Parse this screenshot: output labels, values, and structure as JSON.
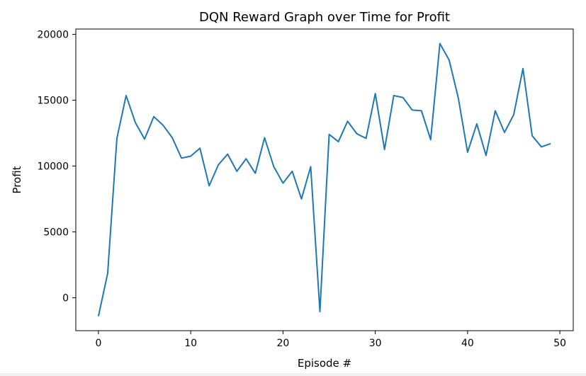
{
  "chart_data": {
    "type": "line",
    "title": "DQN Reward Graph over Time for Profit",
    "xlabel": "Episode #",
    "ylabel": "Profit",
    "xlim": [
      -2.45,
      51.45
    ],
    "ylim": [
      -2500,
      20400
    ],
    "xticks": [
      0,
      10,
      20,
      30,
      40,
      50
    ],
    "yticks": [
      0,
      5000,
      10000,
      15000,
      20000
    ],
    "grid": false,
    "series": [
      {
        "color": "#1f77b4",
        "x": [
          0,
          1,
          2,
          3,
          4,
          5,
          6,
          7,
          8,
          9,
          10,
          11,
          12,
          13,
          14,
          15,
          16,
          17,
          18,
          19,
          20,
          21,
          22,
          23,
          24,
          25,
          26,
          27,
          28,
          29,
          30,
          31,
          32,
          33,
          34,
          35,
          36,
          37,
          38,
          39,
          40,
          41,
          42,
          43,
          44,
          45,
          46,
          47,
          48,
          49
        ],
        "y": [
          -1400,
          1850,
          12100,
          15350,
          13300,
          12050,
          13750,
          13100,
          12150,
          10600,
          10750,
          11350,
          8500,
          10100,
          10900,
          9600,
          10550,
          9450,
          12150,
          9950,
          8700,
          9600,
          7500,
          9950,
          -1050,
          12400,
          11850,
          13400,
          12450,
          12100,
          15500,
          11250,
          15350,
          15200,
          14250,
          14200,
          12000,
          19300,
          18050,
          15150,
          11050,
          13200,
          10800,
          14200,
          12550,
          13900,
          17400,
          12300,
          11450,
          11700
        ]
      }
    ]
  }
}
